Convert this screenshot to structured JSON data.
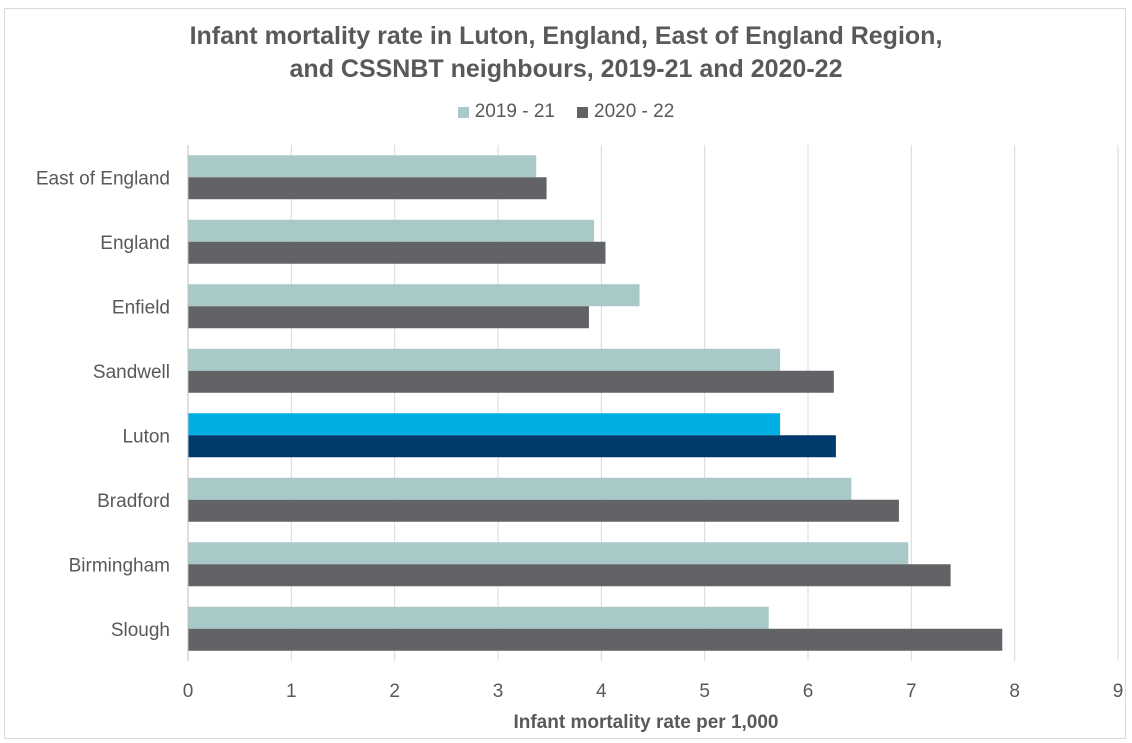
{
  "chart_data": {
    "type": "bar",
    "orientation": "horizontal",
    "title_line1": "Infant mortality rate in Luton, England, East of England Region,",
    "title_line2": "and CSSNBT neighbours, 2019-21 and 2020-22",
    "xlabel": "Infant mortality rate per 1,000",
    "ylabel": "",
    "xlim": [
      0,
      9
    ],
    "xticks": [
      "0",
      "1",
      "2",
      "3",
      "4",
      "5",
      "6",
      "7",
      "8",
      "9"
    ],
    "grid": true,
    "legend_position": "top",
    "categories": [
      "East of England",
      "England",
      "Enfield",
      "Sandwell",
      "Luton",
      "Bradford",
      "Birmingham",
      "Slough"
    ],
    "series": [
      {
        "name": "2019 - 21",
        "color": "#a9c9c9",
        "values": [
          3.37,
          3.93,
          4.37,
          5.73,
          5.73,
          6.42,
          6.97,
          5.62
        ]
      },
      {
        "name": "2020 - 22",
        "color": "#626366",
        "values": [
          3.47,
          4.04,
          3.88,
          6.25,
          6.27,
          6.88,
          7.38,
          7.88
        ]
      }
    ],
    "highlight": {
      "category": "Luton",
      "colors": [
        "#00afe2",
        "#003a6d"
      ]
    }
  }
}
